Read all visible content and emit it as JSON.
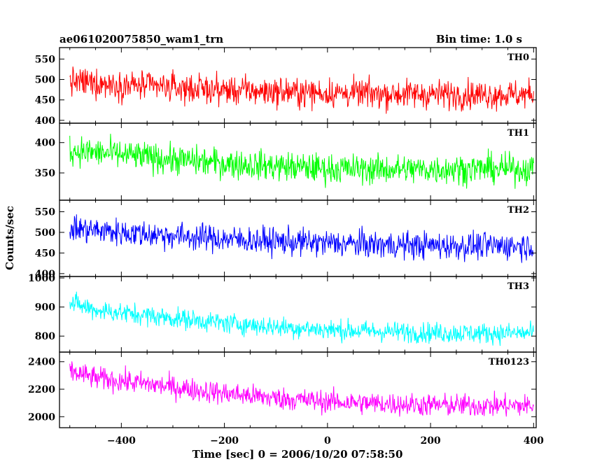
{
  "chart_data": {
    "type": "line",
    "title": "ae061020075850_wam1_trn",
    "bin_time_label": "Bin time: 1.0 s",
    "xlabel": "Time [sec] 0 = 2006/10/20 07:58:50",
    "ylabel": "Counts/sec",
    "xlim": [
      -520,
      405
    ],
    "xticks": [
      -400,
      -200,
      0,
      200,
      400
    ],
    "x_start": -500,
    "x_end": 400,
    "bin_seconds": 1.0,
    "panels": [
      {
        "name": "TH0",
        "color": "#ff0000",
        "ylim": [
          393,
          578
        ],
        "yticks": [
          400,
          450,
          500,
          550
        ],
        "trend_x": [
          -500,
          -400,
          -300,
          -200,
          -100,
          0,
          100,
          200,
          300,
          400
        ],
        "trend_y": [
          495,
          487,
          480,
          474,
          470,
          467,
          465,
          464,
          463,
          463
        ],
        "noise_amplitude": 32,
        "range_min": 400,
        "range_max": 578
      },
      {
        "name": "TH1",
        "color": "#00ff00",
        "ylim": [
          305,
          432
        ],
        "yticks": [
          350,
          400
        ],
        "trend_x": [
          -500,
          -400,
          -300,
          -200,
          -100,
          0,
          100,
          200,
          300,
          400
        ],
        "trend_y": [
          387,
          380,
          372,
          366,
          361,
          357,
          356,
          356,
          357,
          356
        ],
        "noise_amplitude": 22,
        "range_min": 310,
        "range_max": 432
      },
      {
        "name": "TH2",
        "color": "#0000ff",
        "ylim": [
          393,
          578
        ],
        "yticks": [
          400,
          450,
          500,
          550
        ],
        "trend_x": [
          -500,
          -400,
          -300,
          -200,
          -100,
          0,
          100,
          200,
          300,
          400
        ],
        "trend_y": [
          510,
          500,
          492,
          484,
          478,
          474,
          470,
          468,
          467,
          468
        ],
        "noise_amplitude": 30,
        "range_min": 400,
        "range_max": 578
      },
      {
        "name": "TH3",
        "color": "#00ffff",
        "ylim": [
          745,
          1005
        ],
        "yticks": [
          800,
          900,
          1000
        ],
        "trend_x": [
          -500,
          -450,
          -400,
          -300,
          -200,
          -100,
          0,
          100,
          200,
          300,
          400
        ],
        "trend_y": [
          915,
          890,
          880,
          862,
          845,
          832,
          822,
          816,
          812,
          810,
          810
        ],
        "noise_amplitude": 32,
        "range_min": 755,
        "range_max": 1005
      },
      {
        "name": "TH0123",
        "color": "#ff00ff",
        "ylim": [
          1920,
          2470
        ],
        "yticks": [
          2000,
          2200,
          2400
        ],
        "trend_x": [
          -500,
          -450,
          -400,
          -300,
          -200,
          -100,
          0,
          100,
          200,
          300,
          400
        ],
        "trend_y": [
          2330,
          2280,
          2260,
          2215,
          2170,
          2135,
          2110,
          2095,
          2085,
          2080,
          2080
        ],
        "noise_amplitude": 75,
        "range_min": 1935,
        "range_max": 2470
      }
    ]
  }
}
